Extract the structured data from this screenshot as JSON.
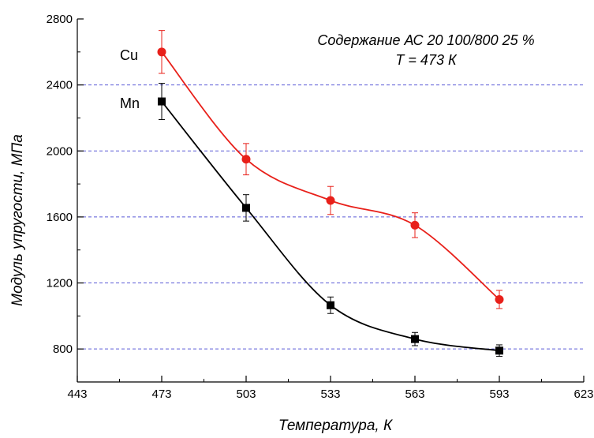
{
  "chart_data": {
    "type": "line",
    "xlabel": "Температура, К",
    "ylabel": "Модуль упругости, МПа",
    "xlim": [
      443,
      623
    ],
    "ylim": [
      600,
      2800
    ],
    "x_ticks": [
      443,
      473,
      503,
      533,
      563,
      593,
      623
    ],
    "y_ticks": [
      800,
      1200,
      1600,
      2000,
      2400,
      2800
    ],
    "grid": "horizontal dashed at 800, 1200, 1600, 2000, 2400",
    "annotation_lines": [
      "Содержание АС 20 100/800 25 %",
      "T = 473 К"
    ],
    "series": [
      {
        "name": "Cu",
        "color": "#e8201a",
        "marker": "circle",
        "x": [
          473,
          503,
          533,
          563,
          593
        ],
        "y": [
          2600,
          1950,
          1700,
          1550,
          1100
        ],
        "err": [
          130,
          95,
          85,
          75,
          55
        ]
      },
      {
        "name": "Mn",
        "color": "#000000",
        "marker": "square",
        "x": [
          473,
          503,
          533,
          563,
          593
        ],
        "y": [
          2300,
          1655,
          1065,
          860,
          790
        ],
        "err": [
          110,
          80,
          50,
          40,
          35
        ]
      }
    ]
  }
}
